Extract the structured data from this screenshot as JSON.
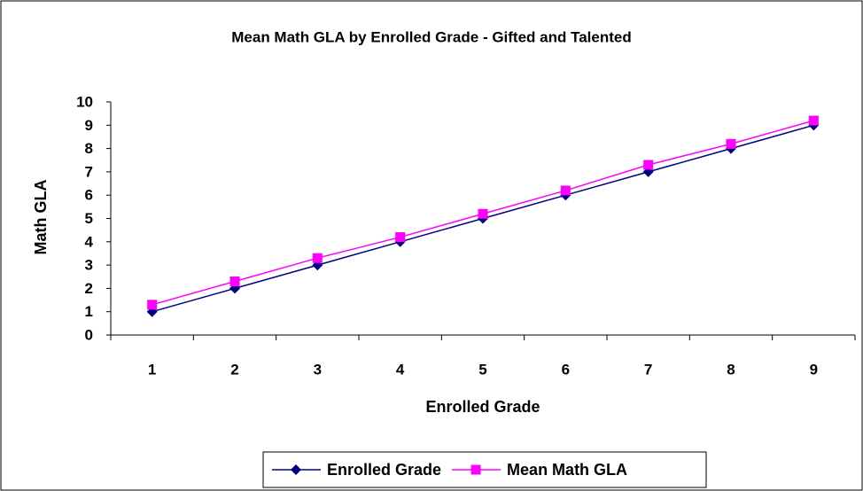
{
  "chart_data": {
    "type": "line",
    "title": "Mean Math GLA by Enrolled Grade - Gifted and Talented",
    "x_label": "Enrolled Grade",
    "y_label": "Math GLA",
    "categories": [
      1,
      2,
      3,
      4,
      5,
      6,
      7,
      8,
      9
    ],
    "series": [
      {
        "name": "Enrolled Grade",
        "color": "#000080",
        "marker": "diamond",
        "values": [
          1,
          2,
          3,
          4,
          5,
          6,
          7,
          8,
          9
        ]
      },
      {
        "name": "Mean Math GLA",
        "color": "#ff00ff",
        "marker": "square",
        "values": [
          1.3,
          2.3,
          3.3,
          4.2,
          5.2,
          6.2,
          7.3,
          8.2,
          9.2
        ]
      }
    ],
    "ylim": [
      0,
      10
    ],
    "yticks": [
      0,
      1,
      2,
      3,
      4,
      5,
      6,
      7,
      8,
      9,
      10
    ],
    "grid": false,
    "legend": "bottom"
  }
}
